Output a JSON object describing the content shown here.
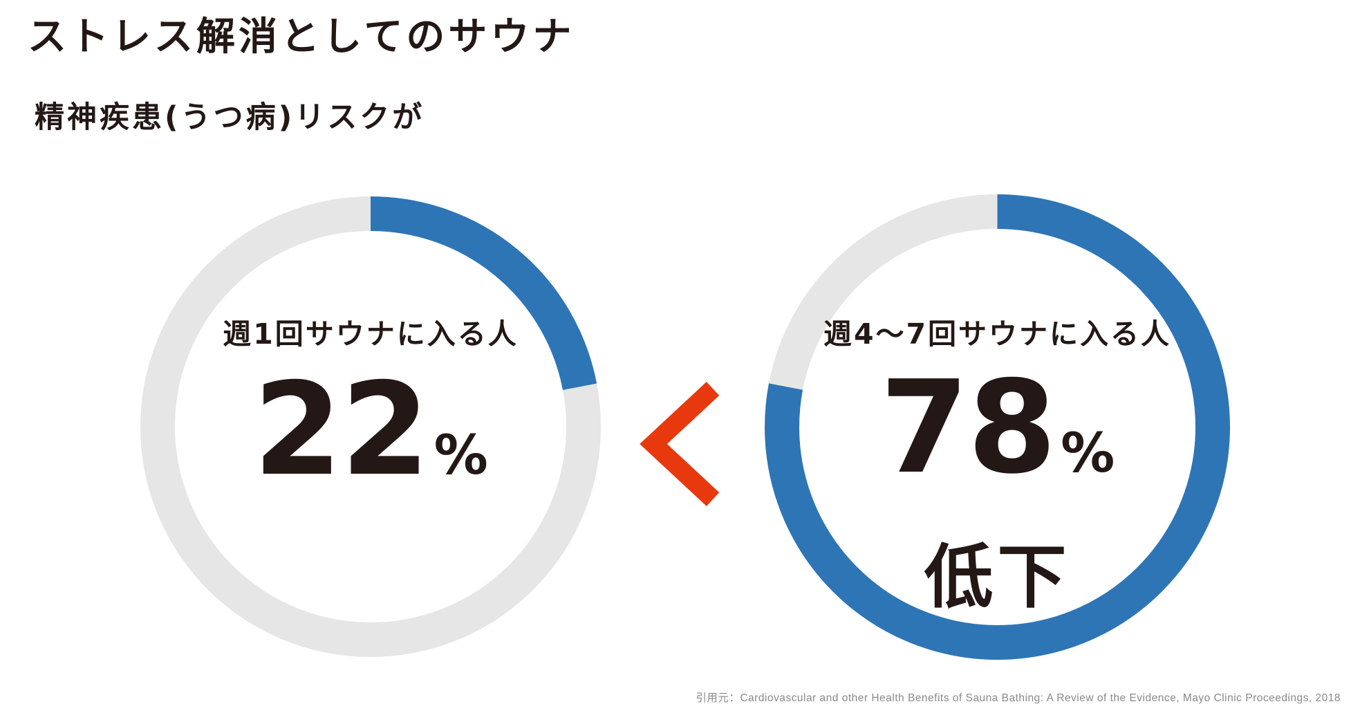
{
  "title": "ストレス解消としてのサウナ",
  "subtitle": "精神疾患(うつ病)リスクが",
  "colors": {
    "accent": "#2e75b6",
    "track": "#e6e6e6",
    "comparison": "#e8380d",
    "text": "#231815",
    "source_text": "#8a8a8a"
  },
  "comparison_symbol": "<",
  "chart_data": [
    {
      "type": "pie",
      "style": "donut",
      "label": "週1回サウナに入る人",
      "value": 22,
      "value_text": "22",
      "unit": "%",
      "slices": [
        {
          "value": 22,
          "color": "#2e75b6"
        },
        {
          "value": 78,
          "color": "#e6e6e6"
        }
      ]
    },
    {
      "type": "pie",
      "style": "donut",
      "label": "週4〜7回サウナに入る人",
      "value": 78,
      "value_text": "78",
      "unit": "%",
      "note": "低下",
      "slices": [
        {
          "value": 78,
          "color": "#2e75b6"
        },
        {
          "value": 22,
          "color": "#e6e6e6"
        }
      ]
    }
  ],
  "source": "引用元：Cardiovascular and other Health Benefits of Sauna Bathing: A Review of the Evidence, Mayo Clinic Proceedings, 2018"
}
